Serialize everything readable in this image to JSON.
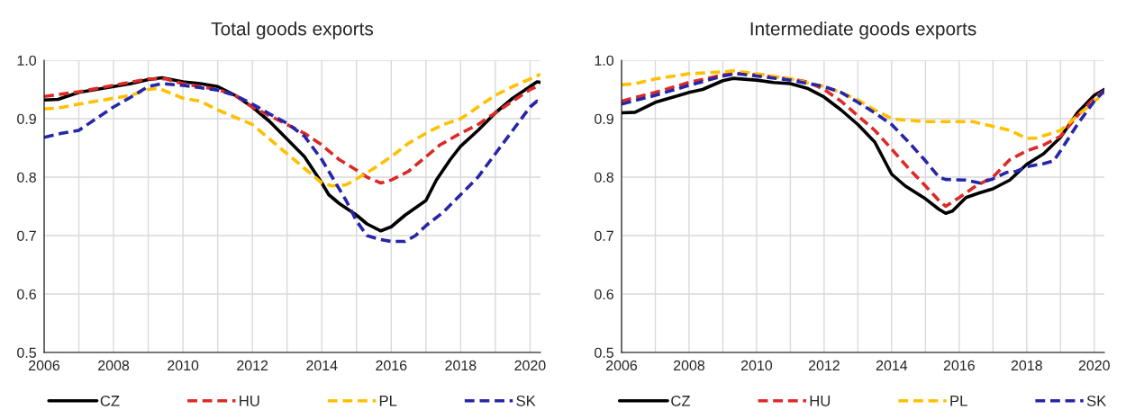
{
  "chart_data": [
    {
      "type": "line",
      "title": "Total goods exports",
      "xlim": [
        2006,
        2020.3
      ],
      "ylim": [
        0.5,
        1.0
      ],
      "xticks": [
        2006,
        {
          "value": 2007,
          "label": null
        },
        2008,
        {
          "value": 2009,
          "label": null
        },
        2010,
        {
          "value": 2011,
          "label": null
        },
        2012,
        {
          "value": 2013,
          "label": null
        },
        2014,
        {
          "value": 2015,
          "label": null
        },
        2016,
        {
          "value": 2017,
          "label": null
        },
        2018,
        {
          "value": 2019,
          "label": null
        },
        2020
      ],
      "yticks": [
        {
          "value": 0.5,
          "label": "0.5"
        },
        {
          "value": 0.6,
          "label": "0.6"
        },
        {
          "value": 0.7,
          "label": "0.7"
        },
        {
          "value": 0.8,
          "label": "0.8"
        },
        {
          "value": 0.9,
          "label": "0.9"
        },
        {
          "value": 1.0,
          "label": "1.0"
        }
      ],
      "grid": true,
      "legend": "bottom",
      "series": [
        {
          "name": "CZ",
          "color": "#000000",
          "line_style": "solid",
          "x": [
            2006,
            2006.4,
            2007,
            2008,
            2008.5,
            2009,
            2009.4,
            2010,
            2010.5,
            2011,
            2011.5,
            2012,
            2012.5,
            2013,
            2013.5,
            2014,
            2014.2,
            2014.5,
            2015,
            2015.3,
            2015.7,
            2016,
            2016.4,
            2017,
            2017.3,
            2017.7,
            2018,
            2018.5,
            2019,
            2019.5,
            2020,
            2020.2,
            2020.3
          ],
          "values": [
            0.932,
            0.933,
            0.945,
            0.955,
            0.96,
            0.967,
            0.97,
            0.963,
            0.96,
            0.955,
            0.94,
            0.92,
            0.895,
            0.865,
            0.835,
            0.79,
            0.77,
            0.755,
            0.735,
            0.72,
            0.708,
            0.715,
            0.735,
            0.76,
            0.795,
            0.83,
            0.853,
            0.88,
            0.91,
            0.935,
            0.955,
            0.963,
            0.962
          ]
        },
        {
          "name": "HU",
          "color": "#dc2a26",
          "line_style": "dashed",
          "x": [
            2006,
            2007,
            2008,
            2009,
            2009.5,
            2010,
            2011,
            2011.5,
            2012,
            2012.5,
            2013,
            2013.5,
            2014,
            2014.5,
            2015,
            2015.3,
            2015.7,
            2016,
            2016.5,
            2017,
            2017.4,
            2018,
            2018.5,
            2019,
            2019.5,
            2020,
            2020.3
          ],
          "values": [
            0.938,
            0.946,
            0.957,
            0.968,
            0.968,
            0.96,
            0.95,
            0.94,
            0.92,
            0.905,
            0.89,
            0.875,
            0.855,
            0.83,
            0.812,
            0.8,
            0.79,
            0.795,
            0.81,
            0.835,
            0.855,
            0.875,
            0.89,
            0.91,
            0.93,
            0.95,
            0.957
          ]
        },
        {
          "name": "PL",
          "color": "#ffc000",
          "line_style": "dashed",
          "x": [
            2006,
            2006.4,
            2007,
            2008,
            2008.5,
            2009,
            2009.3,
            2010,
            2010.5,
            2011,
            2012,
            2012.5,
            2013,
            2013.5,
            2014,
            2014.3,
            2014.7,
            2015,
            2015.5,
            2016,
            2016.5,
            2017,
            2017.5,
            2018,
            2018.5,
            2019,
            2019.5,
            2020,
            2020.3
          ],
          "values": [
            0.917,
            0.918,
            0.925,
            0.935,
            0.94,
            0.95,
            0.952,
            0.935,
            0.93,
            0.915,
            0.89,
            0.865,
            0.84,
            0.815,
            0.79,
            0.785,
            0.787,
            0.797,
            0.815,
            0.835,
            0.858,
            0.875,
            0.89,
            0.9,
            0.92,
            0.94,
            0.955,
            0.968,
            0.976
          ]
        },
        {
          "name": "SK",
          "color": "#2626a8",
          "line_style": "dashed",
          "x": [
            2006,
            2006.5,
            2007,
            2007.5,
            2008,
            2008.5,
            2009,
            2009.4,
            2010,
            2010.5,
            2011,
            2011.5,
            2012,
            2012.5,
            2013,
            2013.5,
            2014,
            2014.3,
            2014.7,
            2015,
            2015.3,
            2015.7,
            2016,
            2016.4,
            2016.7,
            2017,
            2017.5,
            2018,
            2018.5,
            2019,
            2019.5,
            2020,
            2020.2,
            2020.3
          ],
          "values": [
            0.868,
            0.875,
            0.88,
            0.9,
            0.92,
            0.937,
            0.955,
            0.96,
            0.957,
            0.953,
            0.949,
            0.94,
            0.925,
            0.908,
            0.892,
            0.87,
            0.83,
            0.8,
            0.76,
            0.725,
            0.7,
            0.693,
            0.69,
            0.69,
            0.7,
            0.717,
            0.74,
            0.77,
            0.8,
            0.84,
            0.88,
            0.92,
            0.93,
            0.928
          ]
        }
      ]
    },
    {
      "type": "line",
      "title": "Intermediate goods exports",
      "xlim": [
        2006,
        2020.3
      ],
      "ylim": [
        0.5,
        1.0
      ],
      "xticks": [
        2006,
        {
          "value": 2007,
          "label": null
        },
        2008,
        {
          "value": 2009,
          "label": null
        },
        2010,
        {
          "value": 2011,
          "label": null
        },
        2012,
        {
          "value": 2013,
          "label": null
        },
        2014,
        {
          "value": 2015,
          "label": null
        },
        2016,
        {
          "value": 2017,
          "label": null
        },
        2018,
        {
          "value": 2019,
          "label": null
        },
        2020
      ],
      "yticks": [
        {
          "value": 0.5,
          "label": "0.5"
        },
        {
          "value": 0.6,
          "label": "0.6"
        },
        {
          "value": 0.7,
          "label": "0.7"
        },
        {
          "value": 0.8,
          "label": "0.8"
        },
        {
          "value": 0.9,
          "label": "0.9"
        },
        {
          "value": 1.0,
          "label": "1.0"
        }
      ],
      "grid": true,
      "legend": "bottom",
      "series": [
        {
          "name": "CZ",
          "color": "#000000",
          "line_style": "solid",
          "x": [
            2006,
            2006.4,
            2007,
            2008,
            2008.4,
            2009,
            2009.3,
            2010,
            2010.5,
            2011,
            2011.5,
            2012,
            2012.5,
            2013,
            2013.5,
            2014,
            2014.4,
            2015,
            2015.4,
            2015.6,
            2015.8,
            2016.2,
            2016.6,
            2017,
            2017.5,
            2018,
            2018.5,
            2019,
            2019.5,
            2020,
            2020.3
          ],
          "values": [
            0.91,
            0.911,
            0.928,
            0.945,
            0.95,
            0.965,
            0.969,
            0.966,
            0.962,
            0.96,
            0.952,
            0.937,
            0.915,
            0.89,
            0.86,
            0.805,
            0.785,
            0.763,
            0.745,
            0.738,
            0.742,
            0.765,
            0.773,
            0.78,
            0.795,
            0.822,
            0.84,
            0.868,
            0.91,
            0.94,
            0.95
          ]
        },
        {
          "name": "HU",
          "color": "#dc2a26",
          "line_style": "dashed",
          "x": [
            2006,
            2007,
            2008,
            2009,
            2009.4,
            2010,
            2011,
            2011.5,
            2012,
            2012.5,
            2013,
            2013.5,
            2014,
            2014.5,
            2015,
            2015.4,
            2015.6,
            2016,
            2016.5,
            2017,
            2017.5,
            2018,
            2018.5,
            2019,
            2019.5,
            2020,
            2020.3
          ],
          "values": [
            0.93,
            0.945,
            0.962,
            0.975,
            0.978,
            0.975,
            0.968,
            0.963,
            0.95,
            0.93,
            0.905,
            0.88,
            0.848,
            0.815,
            0.785,
            0.76,
            0.75,
            0.765,
            0.785,
            0.8,
            0.83,
            0.845,
            0.855,
            0.87,
            0.905,
            0.935,
            0.948
          ]
        },
        {
          "name": "PL",
          "color": "#ffc000",
          "line_style": "dashed",
          "x": [
            2006,
            2006.4,
            2007,
            2008,
            2009,
            2009.3,
            2010,
            2011,
            2012,
            2012.5,
            2013,
            2013.5,
            2014,
            2014.3,
            2015,
            2016,
            2016.4,
            2017,
            2017.5,
            2018,
            2018.3,
            2019,
            2019.5,
            2020,
            2020.3
          ],
          "values": [
            0.958,
            0.96,
            0.968,
            0.977,
            0.98,
            0.982,
            0.977,
            0.968,
            0.955,
            0.945,
            0.932,
            0.915,
            0.9,
            0.898,
            0.895,
            0.895,
            0.895,
            0.887,
            0.88,
            0.866,
            0.867,
            0.88,
            0.905,
            0.93,
            0.943
          ]
        },
        {
          "name": "SK",
          "color": "#2626a8",
          "line_style": "dashed",
          "x": [
            2006,
            2007,
            2008,
            2009,
            2009.4,
            2010,
            2011,
            2012,
            2012.5,
            2013,
            2013.5,
            2014,
            2014.5,
            2015,
            2015.4,
            2015.6,
            2016.2,
            2016.6,
            2017,
            2017.4,
            2017.7,
            2018,
            2018.5,
            2018.8,
            2019,
            2019.5,
            2020,
            2020.3
          ],
          "values": [
            0.925,
            0.94,
            0.957,
            0.973,
            0.977,
            0.973,
            0.966,
            0.955,
            0.945,
            0.928,
            0.91,
            0.89,
            0.86,
            0.828,
            0.8,
            0.796,
            0.795,
            0.79,
            0.797,
            0.808,
            0.81,
            0.818,
            0.823,
            0.828,
            0.845,
            0.89,
            0.93,
            0.948
          ]
        }
      ]
    }
  ]
}
